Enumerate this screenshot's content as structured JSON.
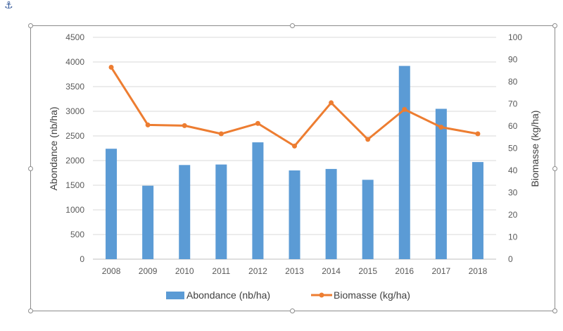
{
  "chart_data": {
    "type": "bar+line",
    "categories": [
      "2008",
      "2009",
      "2010",
      "2011",
      "2012",
      "2013",
      "2014",
      "2015",
      "2016",
      "2017",
      "2018"
    ],
    "series": [
      {
        "name": "Abondance (nb/ha)",
        "type": "bar",
        "axis": "left",
        "values": [
          2240,
          1490,
          1910,
          1920,
          2370,
          1800,
          1830,
          1610,
          3920,
          3050,
          1970
        ]
      },
      {
        "name": "Biomasse (kg/ha)",
        "type": "line",
        "axis": "right",
        "values": [
          86.5,
          60.5,
          60.2,
          56.5,
          61.2,
          51,
          70.5,
          54,
          67.5,
          59.5,
          56.5
        ]
      }
    ],
    "ylabel": "Abondance (nb/ha)",
    "y2label": "Biomasse (kg/ha)",
    "ylim": [
      0,
      4500
    ],
    "y2lim": [
      0,
      100
    ],
    "yticks": [
      "0",
      "500",
      "1000",
      "1500",
      "2000",
      "2500",
      "3000",
      "3500",
      "4000",
      "4500"
    ],
    "y2ticks": [
      "0",
      "10",
      "20",
      "30",
      "40",
      "50",
      "60",
      "70",
      "80",
      "90",
      "100"
    ],
    "grid": true,
    "legend_position": "bottom",
    "colors": {
      "bar": "#5b9bd5",
      "line": "#ed7d31",
      "grid": "#d9d9d9"
    }
  }
}
